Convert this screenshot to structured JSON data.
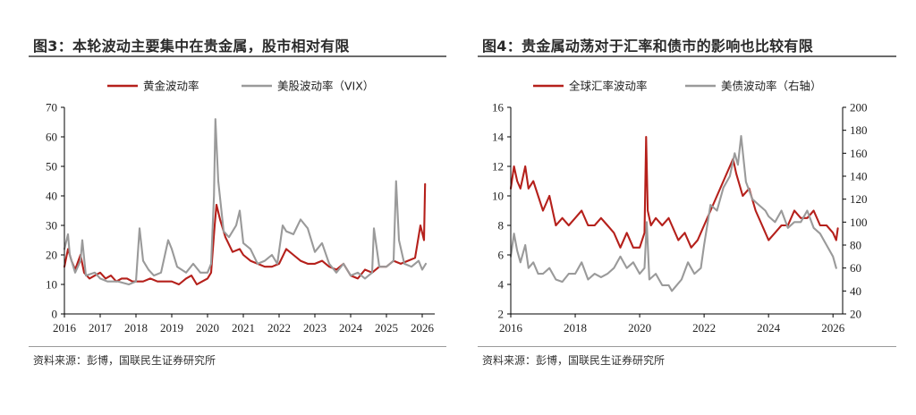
{
  "colors": {
    "red": "#b5201b",
    "gray": "#9a9a9a",
    "axis": "#000000"
  },
  "left": {
    "title": "图3：本轮波动主要集中在贵金属，股市相对有限",
    "source": "资料来源：彭博，国联民生证券研究所",
    "chart_data": {
      "type": "line",
      "title": "图3：本轮波动主要集中在贵金属，股市相对有限",
      "xlabel": "",
      "ylabel": "",
      "xlim": [
        2016,
        2026.35
      ],
      "ylim": [
        0,
        70
      ],
      "yticks": [
        0,
        10,
        20,
        30,
        40,
        50,
        60,
        70
      ],
      "xticks": [
        2016,
        2017,
        2018,
        2019,
        2020,
        2021,
        2022,
        2023,
        2024,
        2025,
        2026
      ],
      "legend": [
        "黄金波动率",
        "美股波动率（VIX）"
      ],
      "legend_position": "top-center",
      "series": [
        {
          "name": "黄金波动率",
          "axis": "left",
          "color": "#b5201b",
          "x": [
            2016.0,
            2016.1,
            2016.2,
            2016.3,
            2016.45,
            2016.55,
            2016.7,
            2016.85,
            2017.0,
            2017.15,
            2017.3,
            2017.45,
            2017.6,
            2017.75,
            2017.9,
            2018.0,
            2018.2,
            2018.4,
            2018.6,
            2018.8,
            2019.0,
            2019.2,
            2019.4,
            2019.55,
            2019.7,
            2019.85,
            2020.0,
            2020.1,
            2020.2,
            2020.25,
            2020.35,
            2020.5,
            2020.7,
            2020.9,
            2021.0,
            2021.2,
            2021.4,
            2021.6,
            2021.8,
            2022.0,
            2022.2,
            2022.4,
            2022.6,
            2022.8,
            2023.0,
            2023.2,
            2023.4,
            2023.6,
            2023.8,
            2024.0,
            2024.2,
            2024.4,
            2024.6,
            2024.8,
            2025.0,
            2025.2,
            2025.4,
            2025.6,
            2025.8,
            2025.95,
            2026.05,
            2026.08
          ],
          "y": [
            16,
            22,
            18,
            15,
            20,
            14,
            12,
            13,
            14,
            12,
            13,
            11,
            12,
            12,
            11,
            11,
            11,
            12,
            11,
            11,
            11,
            10,
            12,
            13,
            10,
            11,
            12,
            14,
            30,
            37,
            32,
            26,
            21,
            22,
            20,
            18,
            17,
            16,
            16,
            17,
            22,
            20,
            18,
            17,
            17,
            18,
            16,
            15,
            17,
            13,
            12,
            15,
            14,
            16,
            16,
            18,
            17,
            18,
            19,
            30,
            25,
            44
          ]
        },
        {
          "name": "美股波动率（VIX）",
          "axis": "left",
          "color": "#9a9a9a",
          "x": [
            2016.0,
            2016.1,
            2016.15,
            2016.3,
            2016.45,
            2016.5,
            2016.6,
            2016.85,
            2017.0,
            2017.2,
            2017.5,
            2017.8,
            2018.0,
            2018.1,
            2018.2,
            2018.35,
            2018.5,
            2018.7,
            2018.9,
            2019.0,
            2019.15,
            2019.4,
            2019.6,
            2019.8,
            2020.0,
            2020.1,
            2020.18,
            2020.22,
            2020.3,
            2020.45,
            2020.6,
            2020.8,
            2020.9,
            2021.0,
            2021.2,
            2021.4,
            2021.6,
            2021.8,
            2021.95,
            2022.1,
            2022.2,
            2022.4,
            2022.6,
            2022.8,
            2023.0,
            2023.2,
            2023.4,
            2023.6,
            2023.8,
            2024.0,
            2024.2,
            2024.4,
            2024.6,
            2024.65,
            2024.8,
            2025.0,
            2025.2,
            2025.27,
            2025.35,
            2025.5,
            2025.7,
            2025.9,
            2026.0,
            2026.1
          ],
          "y": [
            22,
            27,
            20,
            14,
            18,
            25,
            13,
            14,
            12,
            11,
            11,
            10,
            11,
            29,
            18,
            15,
            13,
            14,
            25,
            22,
            16,
            14,
            17,
            14,
            14,
            17,
            40,
            66,
            45,
            28,
            26,
            30,
            35,
            24,
            22,
            17,
            18,
            20,
            17,
            30,
            28,
            27,
            32,
            29,
            21,
            24,
            17,
            14,
            17,
            13,
            14,
            12,
            14,
            29,
            16,
            16,
            18,
            45,
            25,
            17,
            16,
            18,
            15,
            17
          ]
        }
      ]
    }
  },
  "right": {
    "title": "图4：贵金属动荡对于汇率和债市的影响也比较有限",
    "source": "资料来源：彭博，国联民生证券研究所",
    "chart_data": {
      "type": "line",
      "title": "图4：贵金属动荡对于汇率和债市的影响也比较有限",
      "xlabel": "",
      "ylabel": "",
      "y2label": "",
      "xlim": [
        2016,
        2026.3
      ],
      "ylim": [
        2,
        16
      ],
      "y2lim": [
        20,
        200
      ],
      "yticks": [
        2,
        4,
        6,
        8,
        10,
        12,
        14,
        16
      ],
      "y2ticks": [
        20,
        40,
        60,
        80,
        100,
        120,
        140,
        160,
        180,
        200
      ],
      "xticks": [
        2016,
        2018,
        2020,
        2022,
        2024,
        2026
      ],
      "legend": [
        "全球汇率波动率",
        "美债波动率（右轴）"
      ],
      "legend_position": "top-center",
      "series": [
        {
          "name": "全球汇率波动率",
          "axis": "left",
          "color": "#b5201b",
          "x": [
            2016.0,
            2016.1,
            2016.2,
            2016.3,
            2016.45,
            2016.55,
            2016.7,
            2016.85,
            2017.0,
            2017.2,
            2017.4,
            2017.6,
            2017.8,
            2018.0,
            2018.2,
            2018.4,
            2018.6,
            2018.8,
            2019.0,
            2019.2,
            2019.4,
            2019.6,
            2019.8,
            2020.0,
            2020.15,
            2020.2,
            2020.25,
            2020.35,
            2020.5,
            2020.7,
            2020.9,
            2021.0,
            2021.2,
            2021.4,
            2021.6,
            2021.8,
            2022.0,
            2022.2,
            2022.4,
            2022.6,
            2022.8,
            2022.9,
            2023.0,
            2023.2,
            2023.4,
            2023.6,
            2023.8,
            2024.0,
            2024.2,
            2024.4,
            2024.6,
            2024.8,
            2025.0,
            2025.2,
            2025.4,
            2025.6,
            2025.8,
            2026.0,
            2026.1,
            2026.15
          ],
          "y": [
            10.5,
            12,
            11,
            10.5,
            12,
            10.5,
            11,
            10,
            9,
            10,
            8,
            8.5,
            8,
            8.5,
            9,
            8,
            8,
            8.5,
            8,
            7.5,
            6.5,
            7.5,
            6.5,
            6.5,
            7.5,
            14,
            9,
            8,
            8.5,
            8,
            8.5,
            8,
            7,
            7.5,
            6.5,
            7,
            8,
            9,
            10,
            11,
            12,
            12.5,
            11.5,
            10,
            10.5,
            9,
            8,
            7,
            7.5,
            8,
            8,
            9,
            8.5,
            8.5,
            9,
            8,
            8,
            7.5,
            7,
            7.8
          ]
        },
        {
          "name": "美债波动率（右轴）",
          "axis": "right",
          "color": "#9a9a9a",
          "x": [
            2016.0,
            2016.1,
            2016.2,
            2016.3,
            2016.45,
            2016.55,
            2016.7,
            2016.85,
            2017.0,
            2017.2,
            2017.4,
            2017.6,
            2017.8,
            2018.0,
            2018.2,
            2018.4,
            2018.6,
            2018.8,
            2019.0,
            2019.2,
            2019.4,
            2019.6,
            2019.8,
            2020.0,
            2020.15,
            2020.22,
            2020.3,
            2020.5,
            2020.7,
            2020.9,
            2021.0,
            2021.15,
            2021.3,
            2021.5,
            2021.7,
            2021.9,
            2022.0,
            2022.2,
            2022.4,
            2022.6,
            2022.8,
            2022.95,
            2023.05,
            2023.15,
            2023.3,
            2023.5,
            2023.7,
            2023.9,
            2024.0,
            2024.2,
            2024.4,
            2024.6,
            2024.8,
            2025.0,
            2025.2,
            2025.4,
            2025.6,
            2025.8,
            2026.0,
            2026.1
          ],
          "y": [
            70,
            90,
            75,
            65,
            80,
            60,
            65,
            55,
            55,
            60,
            50,
            48,
            55,
            55,
            65,
            50,
            55,
            52,
            55,
            60,
            70,
            60,
            65,
            55,
            60,
            100,
            50,
            55,
            45,
            45,
            40,
            45,
            50,
            65,
            55,
            60,
            80,
            115,
            110,
            130,
            140,
            160,
            150,
            175,
            135,
            120,
            115,
            110,
            105,
            100,
            110,
            95,
            100,
            100,
            110,
            95,
            90,
            80,
            70,
            60
          ]
        }
      ]
    }
  }
}
